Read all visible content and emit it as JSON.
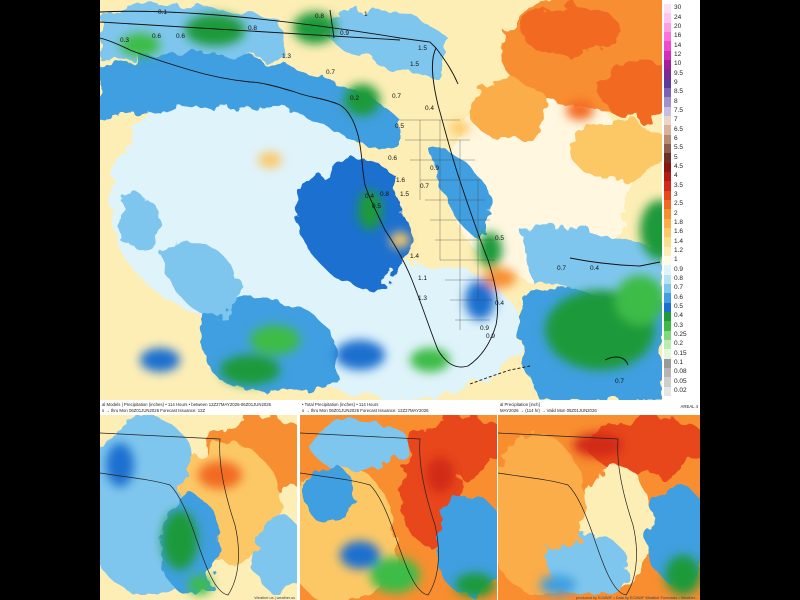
{
  "legend": {
    "levels": [
      {
        "label": "30",
        "color": "#ffe0f6"
      },
      {
        "label": "24",
        "color": "#ffc4ef"
      },
      {
        "label": "20",
        "color": "#ff9ee6"
      },
      {
        "label": "16",
        "color": "#ff72da"
      },
      {
        "label": "14",
        "color": "#f048cf"
      },
      {
        "label": "12",
        "color": "#d42cbd"
      },
      {
        "label": "10",
        "color": "#a61c9e"
      },
      {
        "label": "9.5",
        "color": "#7d2a94"
      },
      {
        "label": "9",
        "color": "#5c3a9e"
      },
      {
        "label": "8.5",
        "color": "#7a62b4"
      },
      {
        "label": "8",
        "color": "#a090cc"
      },
      {
        "label": "7.5",
        "color": "#c6bde0"
      },
      {
        "label": "7",
        "color": "#e9d6c6"
      },
      {
        "label": "6.5",
        "color": "#d6b39a"
      },
      {
        "label": "6",
        "color": "#b88a72"
      },
      {
        "label": "5.5",
        "color": "#8e5b4c"
      },
      {
        "label": "5",
        "color": "#6e2e28"
      },
      {
        "label": "4.5",
        "color": "#8c1410"
      },
      {
        "label": "4",
        "color": "#b01a12"
      },
      {
        "label": "3.5",
        "color": "#d12a16"
      },
      {
        "label": "3",
        "color": "#e8461c"
      },
      {
        "label": "2.5",
        "color": "#f26a22"
      },
      {
        "label": "2",
        "color": "#f88e30"
      },
      {
        "label": "1.8",
        "color": "#fbad48"
      },
      {
        "label": "1.6",
        "color": "#fcc866"
      },
      {
        "label": "1.4",
        "color": "#fddd8c"
      },
      {
        "label": "1.2",
        "color": "#fdeeb6"
      },
      {
        "label": "1",
        "color": "#fffbe4"
      },
      {
        "label": "0.9",
        "color": "#dff3fb"
      },
      {
        "label": "0.8",
        "color": "#b6e2f6"
      },
      {
        "label": "0.7",
        "color": "#7fc6ee"
      },
      {
        "label": "0.6",
        "color": "#3f9fe0"
      },
      {
        "label": "0.5",
        "color": "#1b6fcf"
      },
      {
        "label": "0.4",
        "color": "#1d9a3a"
      },
      {
        "label": "0.3",
        "color": "#3cbc46"
      },
      {
        "label": "0.25",
        "color": "#7fd87a"
      },
      {
        "label": "0.2",
        "color": "#b8eeb0"
      },
      {
        "label": "0.15",
        "color": "#e3f8dc"
      },
      {
        "label": "0.1",
        "color": "#9a9a9a"
      },
      {
        "label": "0.08",
        "color": "#b4b4b4"
      },
      {
        "label": "0.05",
        "color": "#cecece"
      },
      {
        "label": "0.02",
        "color": "#e6e6e6"
      }
    ]
  },
  "main_map_values": [
    {
      "t": "0.1"
    },
    {
      "t": "0.6"
    },
    {
      "t": "0.6"
    },
    {
      "t": "0.8"
    },
    {
      "t": "0.8"
    },
    {
      "t": "0.9"
    },
    {
      "t": "1"
    },
    {
      "t": "1.5"
    },
    {
      "t": "1.3"
    },
    {
      "t": "0.7"
    },
    {
      "t": "1.5"
    },
    {
      "t": "0.2"
    },
    {
      "t": "0.7"
    },
    {
      "t": "0.5"
    },
    {
      "t": "0.4"
    },
    {
      "t": "0.6"
    },
    {
      "t": "0.9"
    },
    {
      "t": "0.7"
    },
    {
      "t": "1.6"
    },
    {
      "t": "0.8"
    },
    {
      "t": "1.5"
    },
    {
      "t": "0.4"
    },
    {
      "t": "0.5"
    },
    {
      "t": "1.4"
    },
    {
      "t": "0.5"
    },
    {
      "t": "1.1"
    },
    {
      "t": "0.7"
    },
    {
      "t": "0.4"
    },
    {
      "t": "1.3"
    },
    {
      "t": "0.9"
    },
    {
      "t": "0.9"
    },
    {
      "t": "0.4"
    },
    {
      "t": "0.7"
    },
    {
      "t": "0.3"
    }
  ],
  "panels": [
    {
      "line1": "al Models | Precipitation (inches) • 114 Hours • between 12Z27MAY2026-06Z01JUN2026",
      "line2": "s → thru Mon 06Z01JUN2026    Forecast Issuance: 12Z",
      "corner": "",
      "footer": "Weather.us | weather.us"
    },
    {
      "line1": "• Total Precipitation (inches) • 114 Hours",
      "line2": "s → thru Mon 06Z01JUN2026    Forecast Issuance: 12Z27MAY2026",
      "corner": "",
      "footer": ""
    },
    {
      "line1": "al Precipitation [inch]",
      "line2": "MAY2026 → (114 hr) → Valid Mon 06Z01JUN2026",
      "corner": "AREAL 4",
      "footer": "produced by ECMWF • Data by ECMWF Weather Forecasts • Weather..."
    }
  ]
}
